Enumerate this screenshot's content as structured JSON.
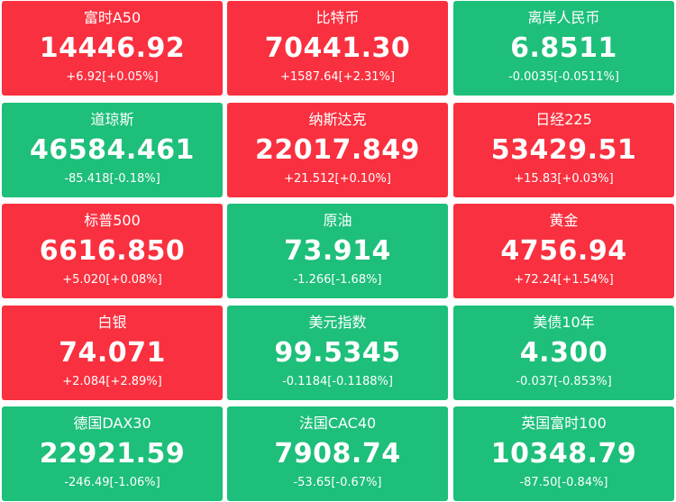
{
  "colors": {
    "up": "#f9303f",
    "down": "#1dbf7a",
    "text": "#ffffff"
  },
  "tiles": [
    {
      "name": "富时A50",
      "price": "14446.92",
      "change": "+6.92[+0.05%]",
      "trend": "up"
    },
    {
      "name": "比特币",
      "price": "70441.30",
      "change": "+1587.64[+2.31%]",
      "trend": "up"
    },
    {
      "name": "离岸人民币",
      "price": "6.8511",
      "change": "-0.0035[-0.0511%]",
      "trend": "down"
    },
    {
      "name": "道琼斯",
      "price": "46584.461",
      "change": "-85.418[-0.18%]",
      "trend": "down"
    },
    {
      "name": "纳斯达克",
      "price": "22017.849",
      "change": "+21.512[+0.10%]",
      "trend": "up"
    },
    {
      "name": "日经225",
      "price": "53429.51",
      "change": "+15.83[+0.03%]",
      "trend": "up"
    },
    {
      "name": "标普500",
      "price": "6616.850",
      "change": "+5.020[+0.08%]",
      "trend": "up"
    },
    {
      "name": "原油",
      "price": "73.914",
      "change": "-1.266[-1.68%]",
      "trend": "down"
    },
    {
      "name": "黄金",
      "price": "4756.94",
      "change": "+72.24[+1.54%]",
      "trend": "up"
    },
    {
      "name": "白银",
      "price": "74.071",
      "change": "+2.084[+2.89%]",
      "trend": "up"
    },
    {
      "name": "美元指数",
      "price": "99.5345",
      "change": "-0.1184[-0.1188%]",
      "trend": "down"
    },
    {
      "name": "美债10年",
      "price": "4.300",
      "change": "-0.037[-0.853%]",
      "trend": "down"
    },
    {
      "name": "德国DAX30",
      "price": "22921.59",
      "change": "-246.49[-1.06%]",
      "trend": "down"
    },
    {
      "name": "法国CAC40",
      "price": "7908.74",
      "change": "-53.65[-0.67%]",
      "trend": "down"
    },
    {
      "name": "英国富时100",
      "price": "10348.79",
      "change": "-87.50[-0.84%]",
      "trend": "down"
    }
  ]
}
